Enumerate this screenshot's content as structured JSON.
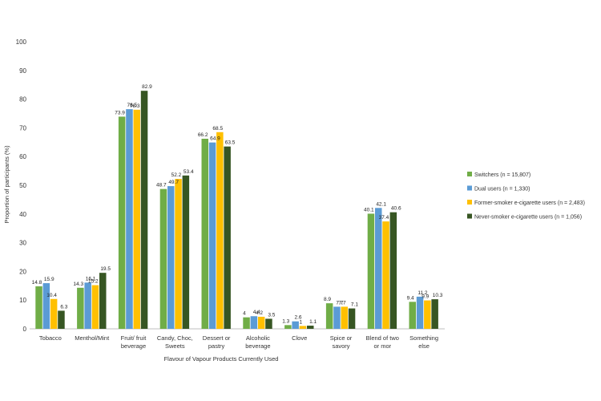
{
  "chart_data": {
    "type": "bar",
    "title": "",
    "xlabel": "Flavour of Vapour Products Currently Used",
    "ylabel": "Proportion of participants (%)",
    "ylim": [
      0,
      100
    ],
    "yticks": [
      0,
      10,
      20,
      30,
      40,
      50,
      60,
      70,
      80,
      90,
      100
    ],
    "grid": false,
    "legend_position": "right",
    "categories": [
      [
        "Tobacco"
      ],
      [
        "Menthol/Mint"
      ],
      [
        "Fruit/ fruit",
        "beverage"
      ],
      [
        "Candy, Choc,",
        "Sweets"
      ],
      [
        "Dessert or",
        "pastry"
      ],
      [
        "Alcoholic",
        "beverage"
      ],
      [
        "Clove"
      ],
      [
        "Spice or",
        "savory"
      ],
      [
        "Blend of two",
        "or mor"
      ],
      [
        "Something",
        "else"
      ]
    ],
    "series": [
      {
        "name": "Switchers (n = 15,807)",
        "color": "#70ad47",
        "values": [
          14.8,
          14.3,
          73.9,
          48.7,
          66.2,
          4,
          1.3,
          8.9,
          40.1,
          9.4
        ]
      },
      {
        "name": "Dual users (n = 1,330)",
        "color": "#5b9bd5",
        "values": [
          15.9,
          16.1,
          76.5,
          49.7,
          64.9,
          4.4,
          2.6,
          7.7,
          42.1,
          11.2
        ]
      },
      {
        "name": "Former-smoker e-cigarette users (n = 2,483)",
        "color": "#ffc000",
        "values": [
          10.4,
          15.2,
          76.3,
          52.2,
          68.5,
          4.2,
          1,
          7.7,
          37.4,
          9.9
        ]
      },
      {
        "name": "Never-smoker e-cigarette users (n = 1,056)",
        "color": "#375623",
        "values": [
          6.3,
          19.5,
          82.9,
          53.4,
          63.5,
          3.5,
          1.1,
          7.1,
          40.6,
          10.3
        ]
      }
    ]
  }
}
